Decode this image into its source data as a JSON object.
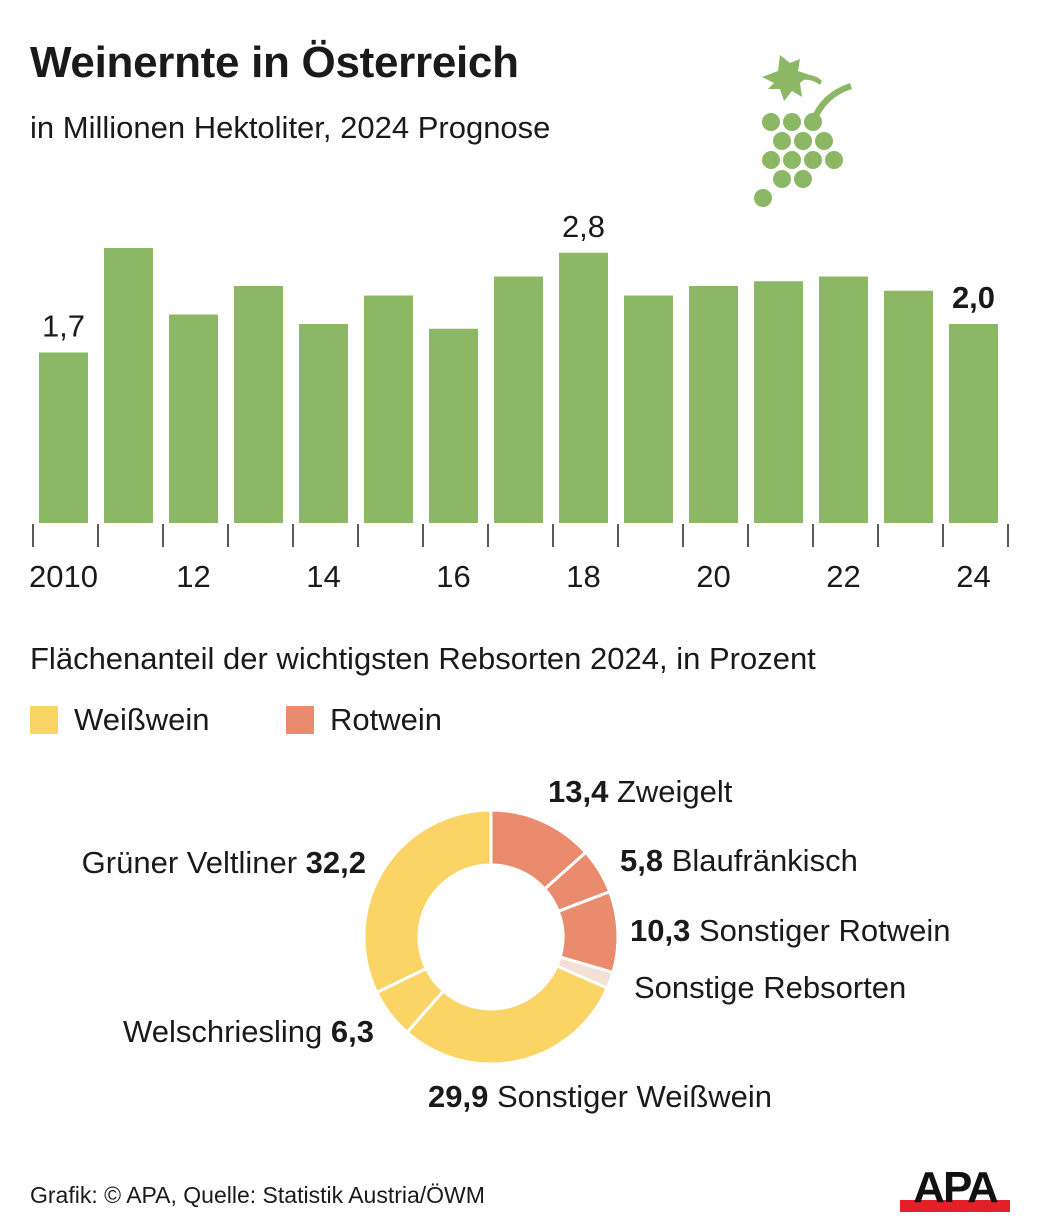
{
  "header": {
    "title": "Weinernte in Österreich",
    "subtitle": "in Millionen Hektoliter, 2024 Prognose",
    "icon": "grape-icon"
  },
  "colors": {
    "bar": "#8cb866",
    "white_wine": "#fbd466",
    "red_wine": "#e98b6c",
    "other": "#f5e0d6",
    "text": "#1a1a1a",
    "logo_red": "#e3202a"
  },
  "chart_data": [
    {
      "type": "bar",
      "title": "Weinernte in Österreich",
      "subtitle": "in Millionen Hektoliter, 2024 Prognose",
      "xlabel": "",
      "ylabel": "Millionen Hektoliter",
      "categories": [
        "2010",
        "2011",
        "2012",
        "2013",
        "2014",
        "2015",
        "2016",
        "2017",
        "2018",
        "2019",
        "2020",
        "2021",
        "2022",
        "2023",
        "2024"
      ],
      "values": [
        1.7,
        2.8,
        2.1,
        2.4,
        2.0,
        2.3,
        1.95,
        2.5,
        2.75,
        2.3,
        2.4,
        2.45,
        2.5,
        2.35,
        2.0
      ],
      "tick_labels": [
        "2010",
        "",
        "12",
        "",
        "14",
        "",
        "16",
        "",
        "18",
        "",
        "20",
        "",
        "22",
        "",
        "24"
      ],
      "data_labels": [
        {
          "index": 0,
          "text": "1,7",
          "bold": false
        },
        {
          "index": 8,
          "text": "2,8",
          "bold": false
        },
        {
          "index": 14,
          "text": "2,0",
          "bold": true
        }
      ],
      "ylim": [
        0,
        3.0
      ],
      "grid": false
    },
    {
      "type": "pie",
      "title": "Flächenanteil der wichtigsten Rebsorten 2024, in Prozent",
      "donut": true,
      "legend": [
        {
          "label": "Weißwein",
          "color_key": "white_wine"
        },
        {
          "label": "Rotwein",
          "color_key": "red_wine"
        }
      ],
      "legend_position": "top-left",
      "slices": [
        {
          "name": "Zweigelt",
          "value": 13.4,
          "value_label": "13,4",
          "group": "red_wine",
          "label_side": "right",
          "value_first": true
        },
        {
          "name": "Blaufränkisch",
          "value": 5.8,
          "value_label": "5,8",
          "group": "red_wine",
          "label_side": "right",
          "value_first": true
        },
        {
          "name": "Sonstiger Rotwein",
          "value": 10.3,
          "value_label": "10,3",
          "group": "red_wine",
          "label_side": "right",
          "value_first": true
        },
        {
          "name": "Sonstige Rebsorten",
          "value": 2.1,
          "value_label": "",
          "group": "other",
          "label_side": "right",
          "value_first": true
        },
        {
          "name": "Sonstiger Weißwein",
          "value": 29.9,
          "value_label": "29,9",
          "group": "white_wine",
          "label_side": "bottom",
          "value_first": true
        },
        {
          "name": "Welschriesling",
          "value": 6.3,
          "value_label": "6,3",
          "group": "white_wine",
          "label_side": "left",
          "value_first": false
        },
        {
          "name": "Grüner Veltliner",
          "value": 32.2,
          "value_label": "32,2",
          "group": "white_wine",
          "label_side": "left",
          "value_first": false
        }
      ]
    }
  ],
  "footer": {
    "source": "Grafik: © APA, Quelle: Statistik Austria/ÖWM",
    "logo_text": "APA"
  }
}
